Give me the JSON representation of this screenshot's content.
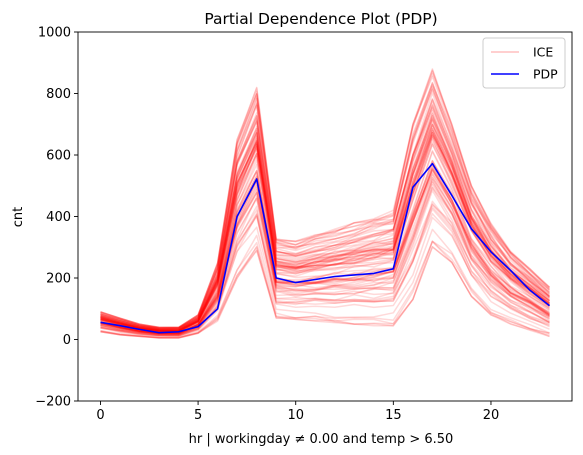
{
  "chart_data": {
    "type": "line",
    "title": "Partial Dependence Plot (PDP)",
    "xlabel": "hr | workingday ≠ 0.00 and temp > 6.50",
    "ylabel": "cnt",
    "xlim": [
      -1.15,
      24.15
    ],
    "ylim": [
      -200,
      1000
    ],
    "xticks": [
      0,
      5,
      10,
      15,
      20
    ],
    "yticks": [
      -200,
      0,
      200,
      400,
      600,
      800,
      1000
    ],
    "grid": false,
    "legend_position": "top-right",
    "x": [
      0,
      1,
      2,
      3,
      4,
      5,
      6,
      7,
      8,
      9,
      10,
      11,
      12,
      13,
      14,
      15,
      16,
      17,
      18,
      19,
      20,
      21,
      22,
      23
    ],
    "series": [
      {
        "name": "ICE",
        "color": "#ff0000",
        "opacity": 0.15,
        "line_count": 90,
        "envelope_low": [
          25,
          15,
          10,
          5,
          5,
          20,
          60,
          200,
          290,
          70,
          65,
          60,
          55,
          50,
          45,
          45,
          130,
          300,
          250,
          140,
          80,
          50,
          30,
          10
        ],
        "envelope_high": [
          90,
          70,
          50,
          40,
          40,
          80,
          250,
          650,
          820,
          330,
          320,
          340,
          360,
          380,
          400,
          420,
          700,
          880,
          700,
          500,
          380,
          290,
          230,
          170
        ]
      },
      {
        "name": "PDP",
        "color": "#0000ff",
        "values": [
          56,
          45,
          33,
          22,
          25,
          42,
          100,
          400,
          522,
          200,
          185,
          195,
          205,
          210,
          215,
          230,
          495,
          572,
          468,
          360,
          285,
          225,
          160,
          110
        ]
      }
    ]
  }
}
